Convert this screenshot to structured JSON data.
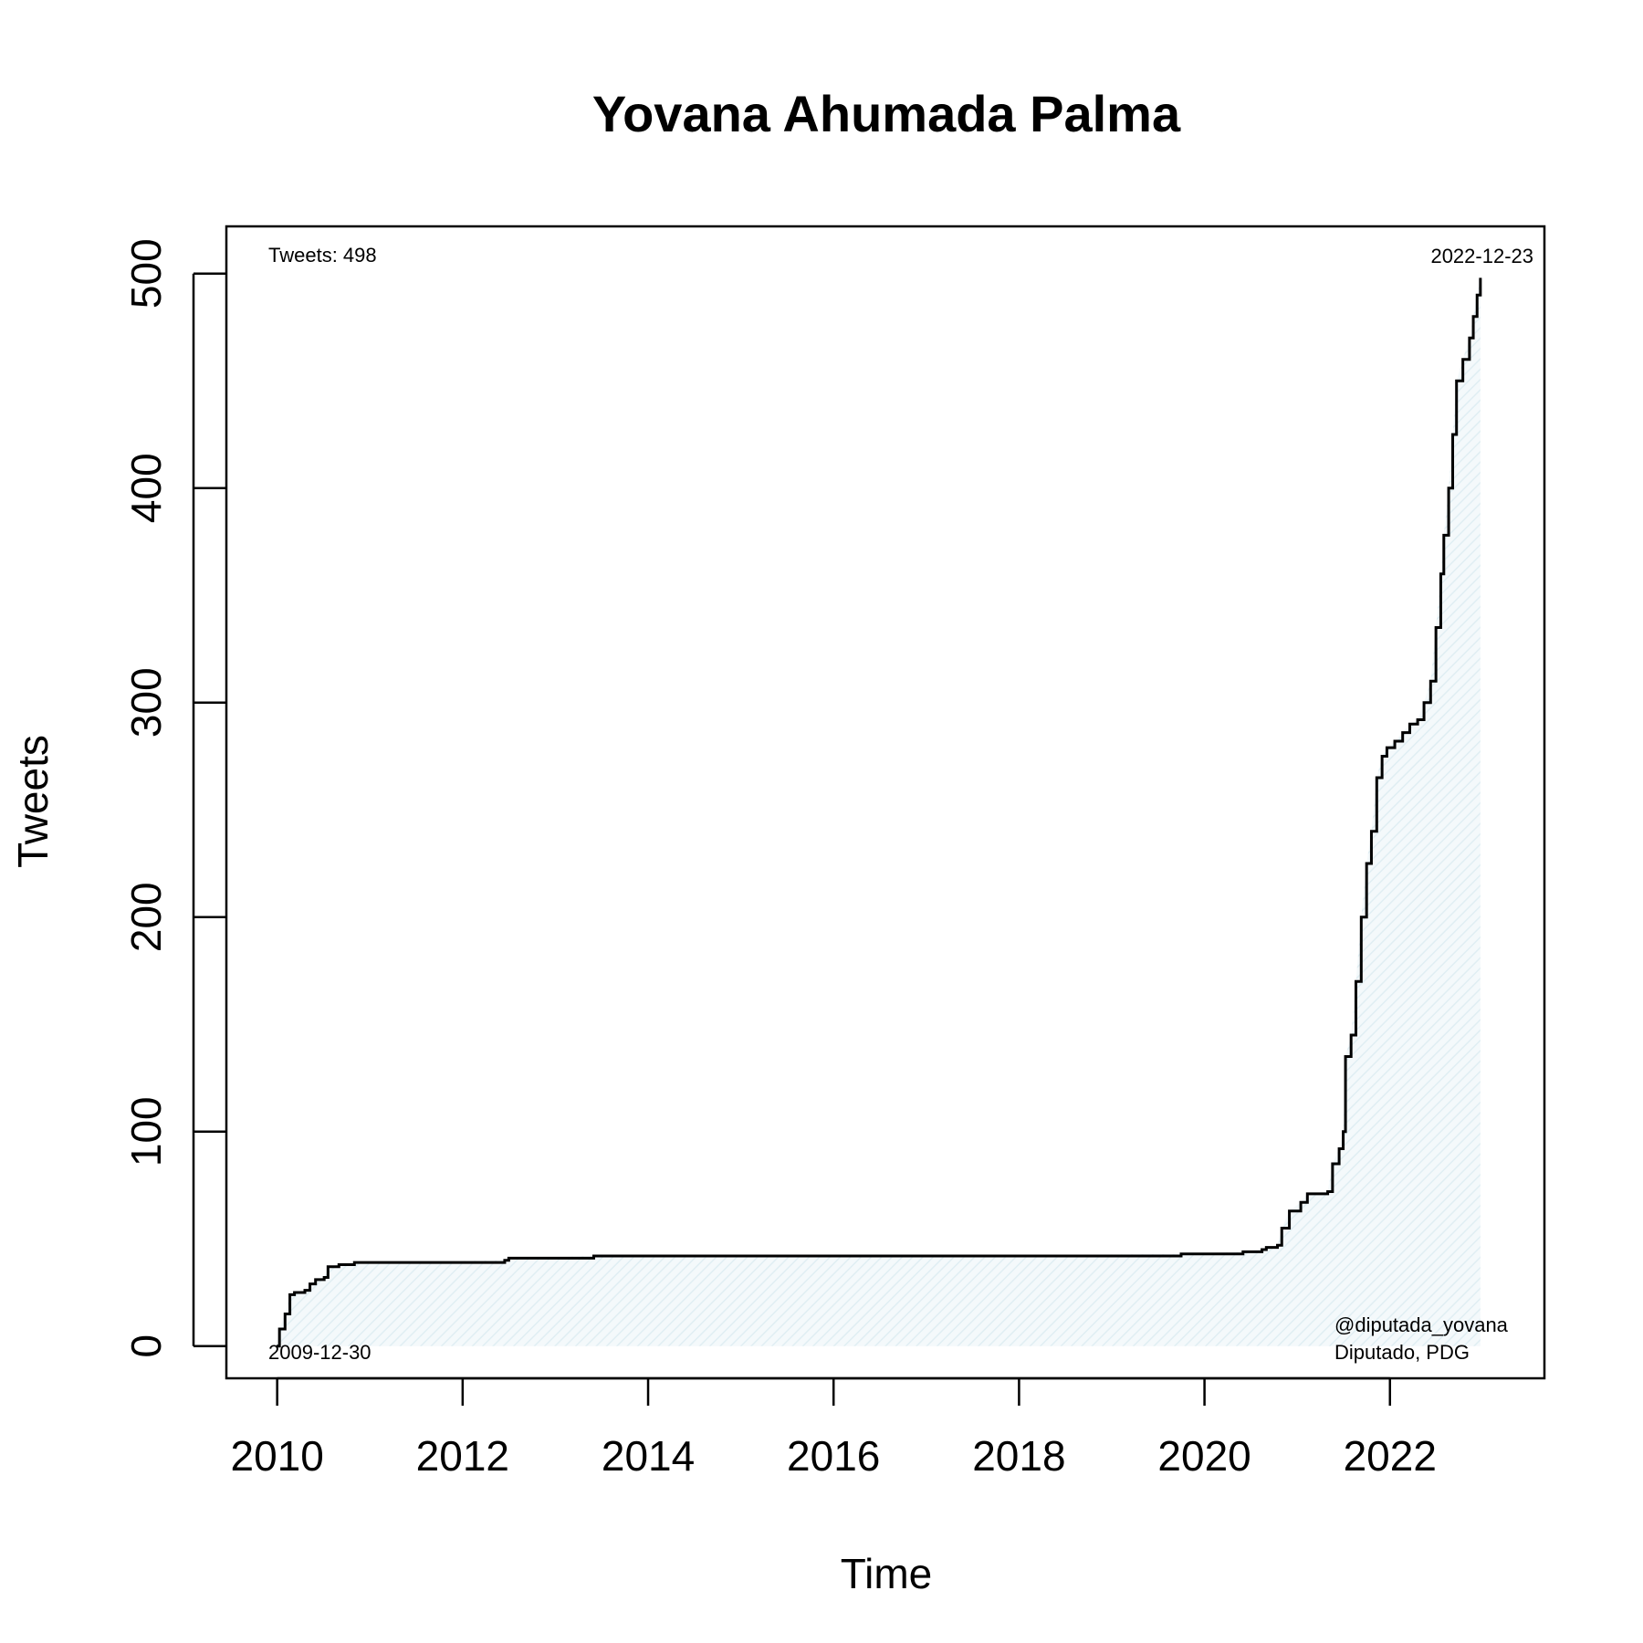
{
  "chart_data": {
    "type": "area",
    "title": "Yovana Ahumada Palma",
    "xlabel": "Time",
    "ylabel": "Tweets",
    "x_axis": "date",
    "xlim": [
      "2009-06-15",
      "2023-09-01"
    ],
    "ylim": [
      -15,
      522
    ],
    "x_ticks": [
      "2010",
      "2012",
      "2014",
      "2016",
      "2018",
      "2020",
      "2022"
    ],
    "y_ticks": [
      "0",
      "100",
      "200",
      "300",
      "400",
      "500"
    ],
    "grid": false,
    "legend": "none",
    "colors": {
      "line": "#000000",
      "fill": "#e6f2f7"
    },
    "annotations": {
      "total": "Tweets: 498",
      "end_date": "2022-12-23",
      "start_date": "2009-12-30",
      "handle": "@diputada_yovana",
      "role": "Diputado, PDG"
    },
    "series": [
      {
        "values": [
          [
            "2009-12-30",
            0
          ],
          [
            "2010-01-10",
            8
          ],
          [
            "2010-02-01",
            15
          ],
          [
            "2010-02-20",
            24
          ],
          [
            "2010-03-10",
            25
          ],
          [
            "2010-04-20",
            26
          ],
          [
            "2010-05-10",
            29
          ],
          [
            "2010-06-01",
            31
          ],
          [
            "2010-07-05",
            32
          ],
          [
            "2010-07-20",
            37
          ],
          [
            "2010-09-01",
            38
          ],
          [
            "2010-11-01",
            39
          ],
          [
            "2012-06-15",
            40
          ],
          [
            "2012-07-01",
            41
          ],
          [
            "2013-06-01",
            42
          ],
          [
            "2015-01-01",
            42
          ],
          [
            "2017-01-01",
            42
          ],
          [
            "2019-10-01",
            43
          ],
          [
            "2020-06-01",
            44
          ],
          [
            "2020-08-15",
            45
          ],
          [
            "2020-09-01",
            46
          ],
          [
            "2020-10-15",
            47
          ],
          [
            "2020-11-01",
            55
          ],
          [
            "2020-12-01",
            63
          ],
          [
            "2021-01-15",
            67
          ],
          [
            "2021-02-10",
            71
          ],
          [
            "2021-05-01",
            72
          ],
          [
            "2021-05-20",
            85
          ],
          [
            "2021-06-15",
            92
          ],
          [
            "2021-07-01",
            100
          ],
          [
            "2021-07-10",
            135
          ],
          [
            "2021-08-01",
            145
          ],
          [
            "2021-08-20",
            170
          ],
          [
            "2021-09-10",
            200
          ],
          [
            "2021-10-01",
            225
          ],
          [
            "2021-10-20",
            240
          ],
          [
            "2021-11-10",
            265
          ],
          [
            "2021-12-01",
            275
          ],
          [
            "2021-12-20",
            279
          ],
          [
            "2022-01-20",
            282
          ],
          [
            "2022-02-20",
            286
          ],
          [
            "2022-03-20",
            290
          ],
          [
            "2022-04-20",
            292
          ],
          [
            "2022-05-15",
            300
          ],
          [
            "2022-06-10",
            310
          ],
          [
            "2022-07-01",
            335
          ],
          [
            "2022-07-20",
            360
          ],
          [
            "2022-08-01",
            378
          ],
          [
            "2022-08-20",
            400
          ],
          [
            "2022-09-05",
            425
          ],
          [
            "2022-09-20",
            450
          ],
          [
            "2022-10-15",
            460
          ],
          [
            "2022-11-10",
            470
          ],
          [
            "2022-11-25",
            480
          ],
          [
            "2022-12-10",
            490
          ],
          [
            "2022-12-23",
            498
          ]
        ]
      }
    ]
  }
}
